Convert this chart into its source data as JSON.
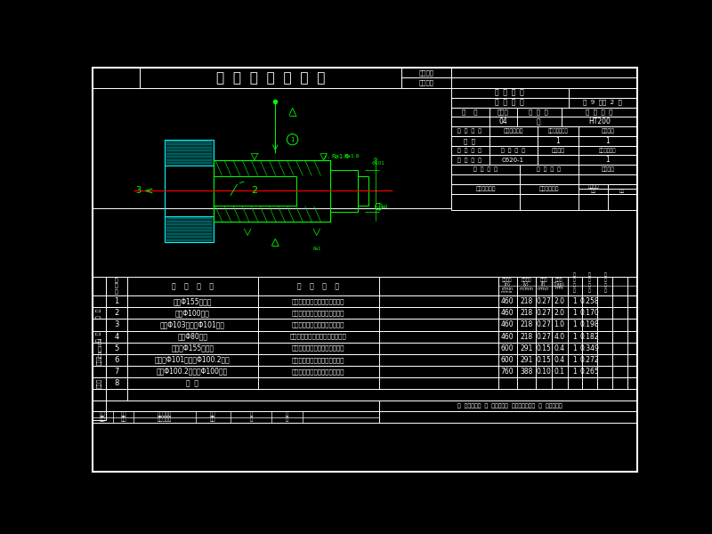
{
  "bg_color": "#000000",
  "line_color": "#ffffff",
  "text_color": "#ffffff",
  "cyan_color": "#00ffff",
  "green_color": "#00ff00",
  "red_color": "#ff0000",
  "title": "机  械  加  工  工  序  卡",
  "table_rows": [
    [
      "1",
      "粗车Φ155上端面",
      "端面车刀、游标卡尺、专用夹具",
      "460",
      "218",
      "0.27",
      "2.0",
      "1",
      "0.258"
    ],
    [
      "2",
      "粗车Φ100端面",
      "端面车刀、游标分尺、专用夹具",
      "460",
      "218",
      "0.27",
      "2.0",
      "1",
      "0.170"
    ],
    [
      "3",
      "粗车Φ103外圆至Φ101外圆",
      "外圆车刀、游标卡尺、专用夹具",
      "460",
      "218",
      "0.27",
      "1.0",
      "1",
      "0.198"
    ],
    [
      "4",
      "粗车Φ80孔孔",
      "内孔车刀、内径百分尺、专用夹具",
      "460",
      "218",
      "0.27",
      "4.0",
      "1",
      "0.182"
    ],
    [
      "5",
      "半精车Φ155上端面",
      "端面车刀、游标卡尺、专用夹具",
      "600",
      "291",
      "0.15",
      "0.4",
      "1",
      "0.349"
    ],
    [
      "6",
      "半精车Φ101外圆至Φ100.2外圆",
      "外圆车刀、游标卡尺、专用夹具",
      "600",
      "291",
      "0.15",
      "0.4",
      "1",
      "0.272"
    ],
    [
      "7",
      "精车Φ100.2外圆至Φ100外圆",
      "外圆车刀、游标卡尺、专用夹具",
      "760",
      "388",
      "0.10",
      "0.1",
      "1",
      "0.265"
    ],
    [
      "8",
      "倒  角",
      "",
      "",
      "",
      "",
      "",
      "",
      ""
    ]
  ],
  "left_labels": [
    "清  图",
    "描  校",
    "底图号",
    "装订号"
  ]
}
